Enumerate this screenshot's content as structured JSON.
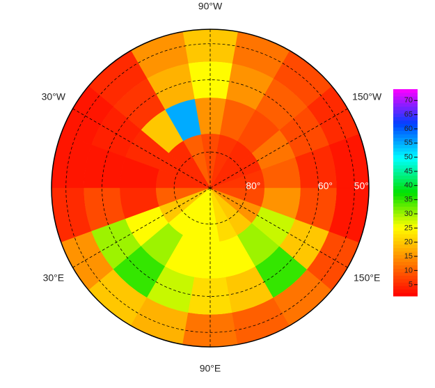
{
  "chart_data": {
    "type": "polar-grid",
    "projection": "north-polar",
    "latlim": [
      46,
      90
    ],
    "lon_edges": [
      -180,
      -160,
      -140,
      -120,
      -100,
      -80,
      -60,
      -40,
      -20,
      0,
      20,
      40,
      60,
      80,
      100,
      120,
      140,
      160,
      180
    ],
    "lat_edges": [
      46,
      55,
      65,
      75,
      90
    ],
    "values": [
      [
        3,
        5,
        8,
        12,
        20,
        15,
        5,
        3,
        3,
        5,
        15,
        20,
        18,
        12,
        10,
        12,
        8,
        3
      ],
      [
        5,
        8,
        10,
        15,
        25,
        18,
        6,
        4,
        3,
        8,
        30,
        35,
        28,
        22,
        20,
        35,
        20,
        8
      ],
      [
        10,
        12,
        8,
        10,
        15,
        55,
        20,
        5,
        3,
        5,
        25,
        30,
        25,
        25,
        25,
        30,
        28,
        15
      ],
      [
        6,
        5,
        5,
        6,
        8,
        10,
        5,
        5,
        5,
        10,
        20,
        25,
        25,
        25,
        22,
        20,
        15,
        8
      ]
    ],
    "lon_ticks": [
      {
        "value": -90,
        "label": "90°W"
      },
      {
        "value": -30,
        "label": "30°W"
      },
      {
        "value": -150,
        "label": "150°W"
      },
      {
        "value": 30,
        "label": "30°E"
      },
      {
        "value": 150,
        "label": "150°E"
      },
      {
        "value": 90,
        "label": "90°E"
      }
    ],
    "lat_ticks": [
      {
        "value": 80,
        "label": "80°"
      },
      {
        "value": 60,
        "label": "60°"
      },
      {
        "value": 50,
        "label": "50°"
      }
    ],
    "colormap": [
      "#ff0000",
      "#ff8000",
      "#ffff00",
      "#00e000",
      "#00ffff",
      "#0040ff",
      "#ff00ff"
    ],
    "clim": [
      1,
      74
    ],
    "cticks": [
      5,
      10,
      15,
      20,
      25,
      30,
      35,
      40,
      45,
      50,
      55,
      60,
      65,
      70
    ]
  }
}
